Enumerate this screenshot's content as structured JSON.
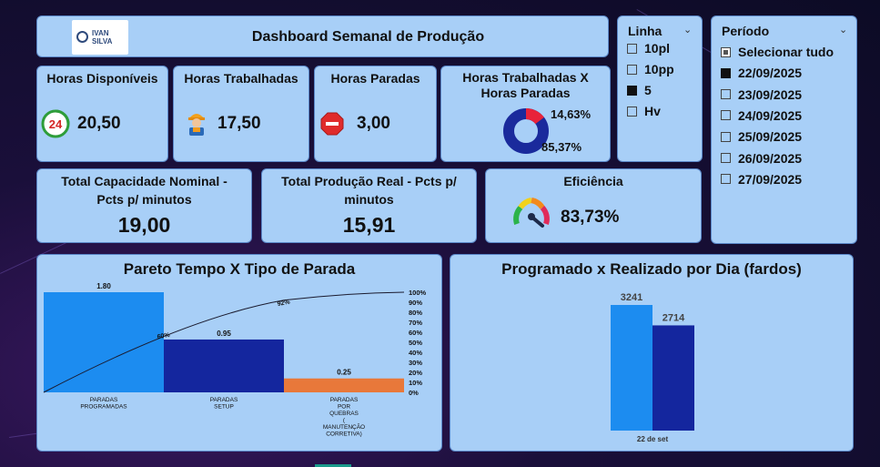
{
  "header": {
    "logo_line1": "IVAN",
    "logo_line2": "SILVA",
    "title": "Dashboard Semanal de Produção"
  },
  "kpis": {
    "horas_disponiveis": {
      "label": "Horas Disponíveis",
      "value": "20,50",
      "icon": "24h-clock-icon"
    },
    "horas_trabalhadas": {
      "label": "Horas Trabalhadas",
      "value": "17,50",
      "icon": "worker-icon"
    },
    "horas_paradas": {
      "label": "Horas Paradas",
      "value": "3,00",
      "icon": "stop-sign-icon"
    },
    "donut": {
      "label_line1": "Horas Trabalhadas X",
      "label_line2": "Horas Paradas",
      "pct_small": "14,63%",
      "pct_large": "85,37%",
      "fraction_small": 0.1463
    },
    "capacidade": {
      "label_line1": "Total Capacidade Nominal -",
      "label_line2": "Pcts p/ minutos",
      "value": "19,00"
    },
    "producao": {
      "label_line1": "Total Produção Real - Pcts p/",
      "label_line2": "minutos",
      "value": "15,91"
    },
    "eficiencia": {
      "label": "Eficiência",
      "value": "83,73%",
      "gauge_fraction": 0.8373
    }
  },
  "slicer_linha": {
    "title": "Linha",
    "items": [
      {
        "label": "10pl",
        "checked": false
      },
      {
        "label": "10pp",
        "checked": false
      },
      {
        "label": "5",
        "checked": true
      },
      {
        "label": "Hv",
        "checked": false
      }
    ]
  },
  "slicer_periodo": {
    "title": "Período",
    "items": [
      {
        "label": "Selecionar tudo",
        "state": "partial"
      },
      {
        "label": "22/09/2025",
        "state": "checked"
      },
      {
        "label": "23/09/2025",
        "state": "unchecked"
      },
      {
        "label": "24/09/2025",
        "state": "unchecked"
      },
      {
        "label": "25/09/2025",
        "state": "unchecked"
      },
      {
        "label": "26/09/2025",
        "state": "unchecked"
      },
      {
        "label": "27/09/2025",
        "state": "unchecked"
      }
    ]
  },
  "colors": {
    "bar_light": "#1c8cf0",
    "bar_dark": "#14269e",
    "bar_orange": "#e8783a",
    "donut_dark": "#1a2a9c",
    "donut_red": "#e8233a"
  },
  "chart_data": [
    {
      "type": "bar",
      "title": "Pareto Tempo X Tipo de Parada",
      "categories": [
        [
          "PARADAS",
          "PROGRAMADAS"
        ],
        [
          "PARADAS",
          "SETUP"
        ],
        [
          "PARADAS",
          "POR",
          "QUEBRAS",
          "(",
          "MANUTENÇÃO",
          "CORRETIVA)"
        ]
      ],
      "values": [
        1.8,
        0.95,
        0.25
      ],
      "value_labels": [
        "1.80",
        "0.95",
        "0.25"
      ],
      "cumulative_pct": [
        60,
        92,
        100
      ],
      "cumulative_labels": [
        "60%",
        "92%"
      ],
      "y2_ticks": [
        "100%",
        "90%",
        "80%",
        "70%",
        "60%",
        "50%",
        "40%",
        "30%",
        "20%",
        "10%",
        "0%"
      ],
      "ylim": [
        0,
        1.8
      ]
    },
    {
      "type": "bar",
      "title": "Programado x Realizado por Dia (fardos)",
      "categories": [
        "22 de set"
      ],
      "series": [
        {
          "values": [
            3241
          ]
        },
        {
          "values": [
            2714
          ]
        }
      ],
      "value_labels": [
        "3241",
        "2714"
      ],
      "ylim": [
        0,
        3241
      ]
    }
  ]
}
